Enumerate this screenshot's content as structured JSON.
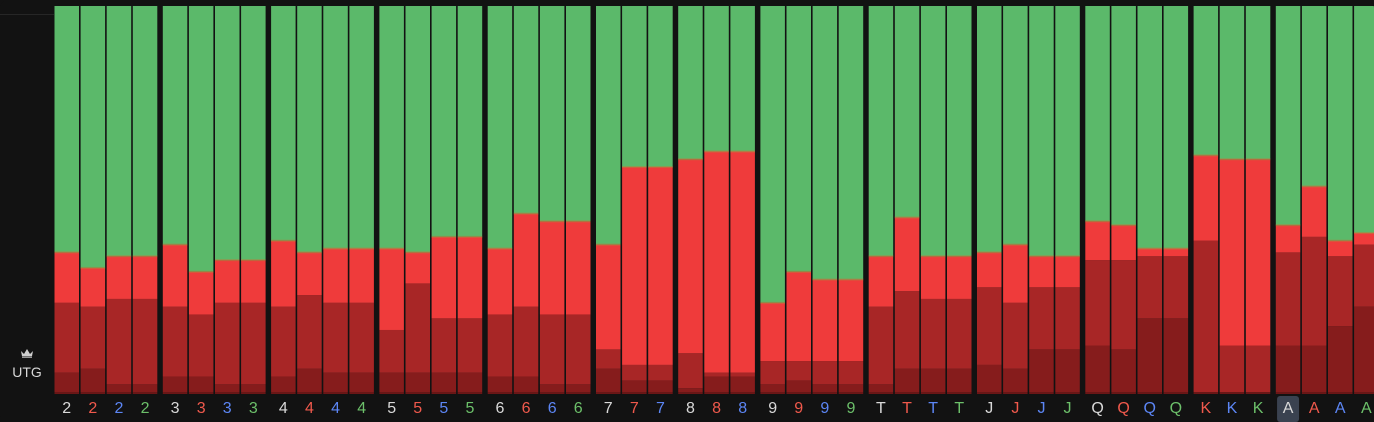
{
  "position": {
    "label": "UTG",
    "icon": "crown-icon"
  },
  "colors": {
    "background": "#121212",
    "fold": "#5bb96a",
    "action_shades": [
      "#ef3b3b",
      "#cf3131",
      "#a82626",
      "#861c1c",
      "#6b1616"
    ],
    "suit_label_colors": {
      "neutral": "#d9d9d9",
      "red": "#f0594c",
      "blue": "#5c86f5",
      "green": "#6cc06a"
    },
    "selected_tick_bg": "#3a4250"
  },
  "chart_data": {
    "type": "bar",
    "stacked": true,
    "ylim": [
      0,
      100
    ],
    "units": "percent of hands per action (shares estimated from bar heights)",
    "series_order_bottom_to_top": [
      "shade-darkest",
      "shade-dark",
      "shade-mid",
      "shade-light",
      "fold"
    ],
    "legend": "none",
    "grid": false,
    "selected_category_index": 45,
    "categories": [
      {
        "rank": "2",
        "suit": "neutral",
        "values": [
          0.5,
          5,
          18,
          13,
          63.5
        ]
      },
      {
        "rank": "2",
        "suit": "red",
        "values": [
          0.5,
          6,
          16,
          10,
          67.5
        ]
      },
      {
        "rank": "2",
        "suit": "blue",
        "values": [
          0.5,
          2,
          22,
          11,
          64.5
        ]
      },
      {
        "rank": "2",
        "suit": "green",
        "values": [
          0.5,
          2,
          22,
          11,
          64.5
        ]
      },
      {
        "rank": "3",
        "suit": "neutral",
        "values": [
          0.5,
          4,
          18,
          16,
          61.5
        ]
      },
      {
        "rank": "3",
        "suit": "red",
        "values": [
          0.5,
          4,
          16,
          11,
          68.5
        ]
      },
      {
        "rank": "3",
        "suit": "blue",
        "values": [
          0.5,
          2,
          21,
          11,
          65.5
        ]
      },
      {
        "rank": "3",
        "suit": "green",
        "values": [
          0.5,
          2,
          21,
          11,
          65.5
        ]
      },
      {
        "rank": "4",
        "suit": "neutral",
        "values": [
          0.5,
          4,
          18,
          17,
          60.5
        ]
      },
      {
        "rank": "4",
        "suit": "red",
        "values": [
          0.5,
          6,
          19,
          11,
          63.5
        ]
      },
      {
        "rank": "4",
        "suit": "blue",
        "values": [
          0.5,
          5,
          18,
          14,
          62.5
        ]
      },
      {
        "rank": "4",
        "suit": "green",
        "values": [
          0.5,
          5,
          18,
          14,
          62.5
        ]
      },
      {
        "rank": "5",
        "suit": "neutral",
        "values": [
          0.5,
          5,
          11,
          21,
          62.5
        ]
      },
      {
        "rank": "5",
        "suit": "red",
        "values": [
          0.5,
          5,
          23,
          8,
          63.5
        ]
      },
      {
        "rank": "5",
        "suit": "blue",
        "values": [
          0.5,
          5,
          14,
          21,
          59.5
        ]
      },
      {
        "rank": "5",
        "suit": "green",
        "values": [
          0.5,
          5,
          14,
          21,
          59.5
        ]
      },
      {
        "rank": "6",
        "suit": "neutral",
        "values": [
          0.5,
          4,
          16,
          17,
          62.5
        ]
      },
      {
        "rank": "6",
        "suit": "red",
        "values": [
          0.5,
          4,
          18,
          24,
          53.5
        ]
      },
      {
        "rank": "6",
        "suit": "blue",
        "values": [
          0.5,
          2,
          18,
          24,
          55.5
        ]
      },
      {
        "rank": "6",
        "suit": "green",
        "values": [
          0.5,
          2,
          18,
          24,
          55.5
        ]
      },
      {
        "rank": "7",
        "suit": "neutral",
        "values": [
          0.5,
          6,
          5,
          27,
          61.5
        ]
      },
      {
        "rank": "7",
        "suit": "red",
        "values": [
          0.5,
          3,
          4,
          51,
          41.5
        ]
      },
      {
        "rank": "7",
        "suit": "blue",
        "values": [
          0.5,
          3,
          4,
          51,
          41.5
        ]
      },
      {
        "rank": "8",
        "suit": "neutral",
        "values": [
          0.5,
          1,
          9,
          50,
          39.5
        ]
      },
      {
        "rank": "8",
        "suit": "red",
        "values": [
          0.5,
          4,
          1,
          57,
          37.5
        ]
      },
      {
        "rank": "8",
        "suit": "blue",
        "values": [
          0.5,
          4,
          1,
          57,
          37.5
        ]
      },
      {
        "rank": "9",
        "suit": "neutral",
        "values": [
          0.5,
          2,
          6,
          15,
          76.5
        ]
      },
      {
        "rank": "9",
        "suit": "red",
        "values": [
          0.5,
          3,
          5,
          23,
          68.5
        ]
      },
      {
        "rank": "9",
        "suit": "blue",
        "values": [
          0.5,
          2,
          6,
          21,
          70.5
        ]
      },
      {
        "rank": "9",
        "suit": "green",
        "values": [
          0.5,
          2,
          6,
          21,
          70.5
        ]
      },
      {
        "rank": "T",
        "suit": "neutral",
        "values": [
          0.5,
          2,
          20,
          13,
          64.5
        ]
      },
      {
        "rank": "T",
        "suit": "red",
        "values": [
          0.5,
          6,
          20,
          19,
          54.5
        ]
      },
      {
        "rank": "T",
        "suit": "blue",
        "values": [
          0.5,
          6,
          18,
          11,
          64.5
        ]
      },
      {
        "rank": "T",
        "suit": "green",
        "values": [
          0.5,
          6,
          18,
          11,
          64.5
        ]
      },
      {
        "rank": "J",
        "suit": "neutral",
        "values": [
          0.5,
          7,
          20,
          9,
          63.5
        ]
      },
      {
        "rank": "J",
        "suit": "red",
        "values": [
          0.5,
          6,
          17,
          15,
          61.5
        ]
      },
      {
        "rank": "J",
        "suit": "blue",
        "values": [
          0.5,
          11,
          16,
          8,
          64.5
        ]
      },
      {
        "rank": "J",
        "suit": "green",
        "values": [
          0.5,
          11,
          16,
          8,
          64.5
        ]
      },
      {
        "rank": "Q",
        "suit": "neutral",
        "values": [
          0.5,
          12,
          22,
          10,
          55.5
        ]
      },
      {
        "rank": "Q",
        "suit": "red",
        "values": [
          0.5,
          11,
          23,
          9,
          56.5
        ]
      },
      {
        "rank": "Q",
        "suit": "blue",
        "values": [
          0.5,
          19,
          16,
          2,
          62.5
        ]
      },
      {
        "rank": "Q",
        "suit": "green",
        "values": [
          0.5,
          19,
          16,
          2,
          62.5
        ]
      },
      {
        "rank": "K",
        "suit": "red",
        "values": [
          0.5,
          0,
          39,
          22,
          38.5
        ]
      },
      {
        "rank": "K",
        "suit": "blue",
        "values": [
          0.5,
          0,
          12,
          48,
          39.5
        ]
      },
      {
        "rank": "K",
        "suit": "green",
        "values": [
          0.5,
          0,
          12,
          48,
          39.5
        ]
      },
      {
        "rank": "A",
        "suit": "neutral",
        "values": [
          0.5,
          12,
          24,
          7,
          56.5
        ]
      },
      {
        "rank": "A",
        "suit": "red",
        "values": [
          0.5,
          12,
          28,
          13,
          46.5
        ]
      },
      {
        "rank": "A",
        "suit": "blue",
        "values": [
          0.5,
          17,
          18,
          4,
          60.5
        ]
      },
      {
        "rank": "A",
        "suit": "green",
        "values": [
          0.5,
          22,
          16,
          3,
          58.5
        ]
      }
    ]
  }
}
